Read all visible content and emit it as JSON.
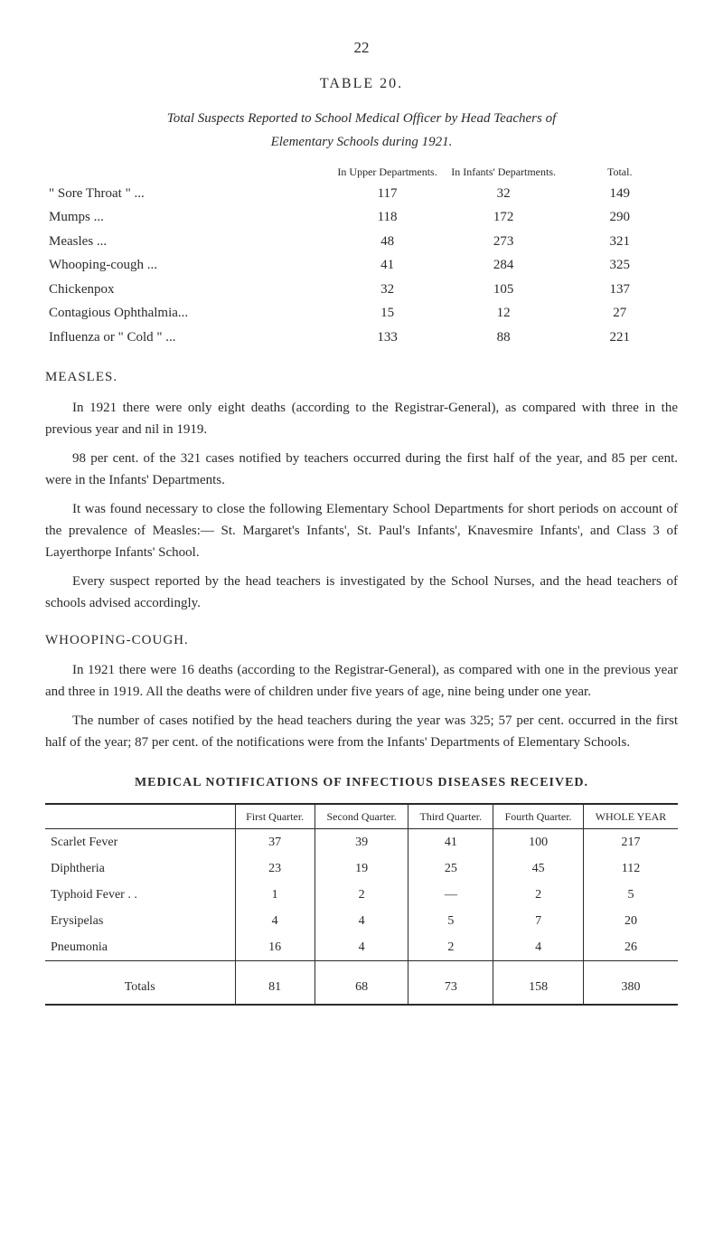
{
  "pageNumber": "22",
  "table20": {
    "label": "TABLE 20.",
    "titleLine1": "Total Suspects Reported to School Medical Officer by Head Teachers of",
    "titleLine2": "Elementary Schools during 1921.",
    "headers": {
      "col1": "In Upper Departments.",
      "col2": "In Infants' Departments.",
      "col3": "Total."
    },
    "rows": [
      {
        "label": "\" Sore Throat \"  ...",
        "c1": "117",
        "c2": "32",
        "c3": "149"
      },
      {
        "label": "Mumps   ...",
        "c1": "118",
        "c2": "172",
        "c3": "290"
      },
      {
        "label": "Measles   ...",
        "c1": "48",
        "c2": "273",
        "c3": "321"
      },
      {
        "label": "Whooping-cough ...",
        "c1": "41",
        "c2": "284",
        "c3": "325"
      },
      {
        "label": "Chickenpox",
        "c1": "32",
        "c2": "105",
        "c3": "137"
      },
      {
        "label": "Contagious Ophthalmia...",
        "c1": "15",
        "c2": "12",
        "c3": "27"
      },
      {
        "label": "Influenza or \" Cold \"   ...",
        "c1": "133",
        "c2": "88",
        "c3": "221"
      }
    ]
  },
  "measles": {
    "heading": "MEASLES.",
    "p1": "In 1921 there were only eight deaths (according to the Registrar-General), as compared with three in the previous year and nil in 1919.",
    "p2": "98 per cent. of the 321 cases notified by teachers occurred during the first half of the year, and 85 per cent. were in the Infants' Departments.",
    "p3": "It was found necessary to close the following Elementary School Depart­ments for short periods on account of the prevalence of Measles:— St. Margaret's Infants', St. Paul's Infants', Knavesmire Infants', and Class 3 of Layerthorpe Infants' School.",
    "p4": "Every suspect reported by the head teachers is investigated by the School Nurses, and the head teachers of schools advised accordingly."
  },
  "whooping": {
    "heading": "WHOOPING-COUGH.",
    "p1": "In 1921 there were 16 deaths (according to the Registrar-General), as compared with one in the previous year and three in 1919. All the deaths were of children under five years of age, nine being under one year.",
    "p2": "The number of cases notified by the head teachers during the year was 325; 57 per cent. occurred in the first half of the year; 87 per cent. of the notifications were from the Infants' Departments of Elementary Schools."
  },
  "notif": {
    "title": "MEDICAL NOTIFICATIONS OF INFECTIOUS DISEASES RECEIVED.",
    "headers": {
      "q1": "First Quarter.",
      "q2": "Second Quarter.",
      "q3": "Third Quarter.",
      "q4": "Fourth Quarter.",
      "total": "WHOLE YEAR"
    },
    "rows": [
      {
        "d": "Scarlet Fever",
        "q1": "37",
        "q2": "39",
        "q3": "41",
        "q4": "100",
        "t": "217"
      },
      {
        "d": "Diphtheria",
        "q1": "23",
        "q2": "19",
        "q3": "25",
        "q4": "45",
        "t": "112"
      },
      {
        "d": "Typhoid Fever  . .",
        "q1": "1",
        "q2": "2",
        "q3": "—",
        "q4": "2",
        "t": "5"
      },
      {
        "d": "Erysipelas",
        "q1": "4",
        "q2": "4",
        "q3": "5",
        "q4": "7",
        "t": "20"
      },
      {
        "d": "Pneumonia",
        "q1": "16",
        "q2": "4",
        "q3": "2",
        "q4": "4",
        "t": "26"
      }
    ],
    "totals": {
      "label": "Totals",
      "q1": "81",
      "q2": "68",
      "q3": "73",
      "q4": "158",
      "t": "380"
    }
  }
}
